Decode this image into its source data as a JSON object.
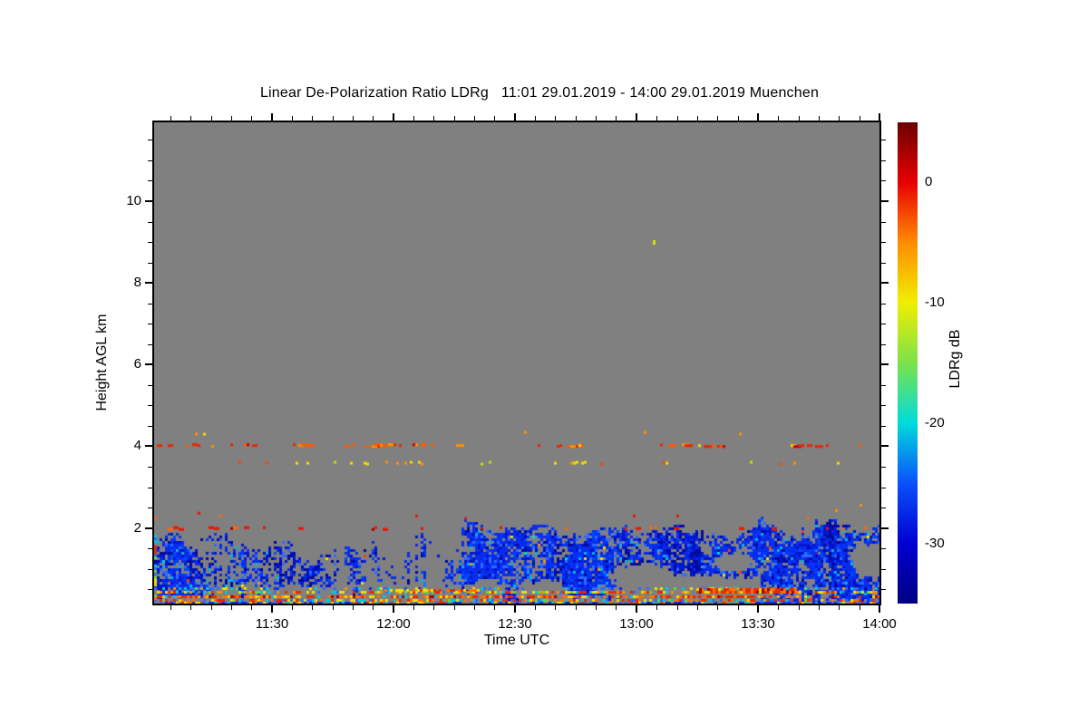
{
  "figure": {
    "title": "Linear De-Polarization Ratio LDRg   11:01 29.01.2019 - 14:00 29.01.2019 Muenchen"
  },
  "chart_data": {
    "type": "heatmap",
    "title": "Linear De-Polarization Ratio LDRg   11:01 29.01.2019 - 14:00 29.01.2019 Muenchen",
    "xlabel": "Time UTC",
    "ylabel": "Height AGL km",
    "colorbar_label": "LDRg dB",
    "station": "Muenchen",
    "date": "29.01.2019",
    "time_start_utc": "11:01",
    "time_end_utc": "14:00",
    "duration_min": 179,
    "x_ticks": [
      {
        "label": "11:30",
        "min": 29
      },
      {
        "label": "12:00",
        "min": 59
      },
      {
        "label": "12:30",
        "min": 89
      },
      {
        "label": "13:00",
        "min": 119
      },
      {
        "label": "13:30",
        "min": 149
      },
      {
        "label": "14:00",
        "min": 179
      }
    ],
    "x_minor_start_min": 4,
    "x_minor_step_min": 5,
    "ylim_km": [
      0.15,
      11.93
    ],
    "y_major_ticks_km": [
      2,
      4,
      6,
      8,
      10
    ],
    "y_minor_step_km": 0.5,
    "grid": false,
    "no_data_color": "#808080",
    "colorbar": {
      "limits_db": [
        5,
        -35
      ],
      "ticks_db": [
        0,
        -10,
        -20,
        -30
      ],
      "minor_step_db": 1,
      "gradient": [
        [
          0,
          "#6B0000"
        ],
        [
          0.125,
          "#E80000"
        ],
        [
          0.25,
          "#FF8C00"
        ],
        [
          0.375,
          "#F0EE00"
        ],
        [
          0.5,
          "#7CE24A"
        ],
        [
          0.625,
          "#00DCDC"
        ],
        [
          0.75,
          "#0A50FA"
        ],
        [
          0.875,
          "#0000D2"
        ],
        [
          1,
          "#000082"
        ]
      ]
    },
    "render": {
      "seed": 20190129,
      "cell": 3,
      "accent_prob": 0.008,
      "cloud_palette": [
        [
          "#0A2BEA",
          42
        ],
        [
          "#0016CE",
          18
        ],
        [
          "#0038FF",
          16
        ],
        [
          "#2E6BFF",
          9
        ],
        [
          "#000A9E",
          6
        ],
        [
          "#0050F0",
          6
        ],
        [
          "#00B6E8",
          3
        ]
      ],
      "cloud_dark": [
        "#0016CE",
        "#000A9E"
      ],
      "accent_palette": [
        [
          "#FF3C00",
          3
        ],
        [
          "#FF9400",
          3
        ],
        [
          "#F0E400",
          2
        ],
        [
          "#00E0D0",
          2
        ]
      ],
      "cyan_boost": {
        "t_max": 20,
        "h_max": 1.15,
        "prob": 0.05,
        "color": "#00C8E0"
      },
      "cloud_segments": [
        {
          "t0": 0,
          "t1": 12,
          "top": 1.6,
          "a1": 0.15,
          "f1": 0.5,
          "a2": 0.1,
          "f2": 0.13,
          "jit": 0.2,
          "bottom": 0.3,
          "bjit": 0.3,
          "density": 0.85,
          "keep": 0.95
        },
        {
          "t0": 12,
          "t1": 52,
          "top": 1.55,
          "a1": 0.22,
          "f1": 0.45,
          "a2": 0.12,
          "f2": 0.11,
          "jit": 0.3,
          "bottom": 0.6,
          "bjit": 0.7,
          "density": 0.62,
          "keep": 0.8
        },
        {
          "t0": 52,
          "t1": 76,
          "top": 1.4,
          "a1": 0.3,
          "f1": 0.5,
          "a2": 0.1,
          "f2": 0.2,
          "jit": 0.35,
          "bottom": 0.65,
          "bjit": 0.6,
          "density": 0.45,
          "keep": 0.6
        },
        {
          "t0": 76,
          "t1": 114,
          "top": 1.95,
          "a1": 0.12,
          "f1": 0.35,
          "a2": 0.08,
          "f2": 0.1,
          "jit": 0.15,
          "bottom": 0.3,
          "bjit": 0.15,
          "density": 0.95,
          "keep": 1
        },
        {
          "t0": 114,
          "t1": 152,
          "top": 2.0,
          "a1": 0.15,
          "f1": 0.3,
          "a2": 0.1,
          "f2": 0.08,
          "jit": 0.2,
          "bottom": 0.3,
          "bjit": 0.2,
          "density": 0.88,
          "keep": 0.97
        },
        {
          "t0": 152,
          "t1": 179,
          "top": 2.1,
          "a1": 0.25,
          "f1": 0.35,
          "a2": 0.1,
          "f2": 0.07,
          "jit": 0.25,
          "bottom": 0.2,
          "bjit": 0.1,
          "density": 0.97,
          "keep": 1
        }
      ],
      "holes": [
        {
          "tc": 133,
          "hc": 0.45,
          "rt": 24,
          "rh": 0.5
        },
        {
          "tc": 120,
          "hc": 0.85,
          "rt": 8,
          "rh": 0.32
        },
        {
          "tc": 143,
          "hc": 1.15,
          "rt": 6,
          "rh": 0.28
        },
        {
          "tc": 96,
          "hc": 0.45,
          "rt": 7,
          "rh": 0.3
        },
        {
          "tc": 36,
          "hc": 0.35,
          "rt": 10,
          "rh": 0.25
        },
        {
          "tc": 82,
          "hc": 0.5,
          "rt": 5,
          "rh": 0.3
        },
        {
          "tc": 177,
          "hc": 1.2,
          "rt": 6,
          "rh": 0.5
        }
      ],
      "speckle_lines": [
        {
          "h": 4.05,
          "jitter": 1,
          "density": 0.32,
          "dash": 1,
          "palette": [
            [
              "#E82800",
              35
            ],
            [
              "#FF5A00",
              25
            ],
            [
              "#FF9000",
              22
            ],
            [
              "#C80000",
              8
            ],
            [
              "#FFD200",
              10
            ]
          ]
        },
        {
          "h": 3.62,
          "jitter": 1,
          "density": 0.11,
          "dash": 0,
          "palette": [
            [
              "#F0E000",
              55
            ],
            [
              "#C8E000",
              20
            ],
            [
              "#FF9000",
              15
            ],
            [
              "#FF4600",
              10
            ]
          ]
        },
        {
          "h": 4.33,
          "jitter": 2,
          "density": 0.035,
          "dash": 0,
          "palette": [
            [
              "#FF9000",
              60
            ],
            [
              "#F0E000",
              40
            ]
          ]
        },
        {
          "h": 2.02,
          "jitter": 1,
          "density": 0.13,
          "dash": 1,
          "palette": [
            [
              "#E81400",
              55
            ],
            [
              "#FF6A00",
              30
            ],
            [
              "#A00000",
              15
            ]
          ]
        },
        {
          "h": 2.33,
          "jitter": 3,
          "density": 0.03,
          "dash": 0,
          "palette": [
            [
              "#FF6A00",
              50
            ],
            [
              "#E81400",
              50
            ]
          ]
        }
      ],
      "ground_bands": [
        {
          "h": 0.56,
          "density": 0.3,
          "palette": [
            [
              "#00C8E0",
              30
            ],
            [
              "#2E6BFF",
              25
            ],
            [
              "#66D83C",
              10
            ],
            [
              "#F0E000",
              15
            ],
            [
              "#FF9000",
              10
            ],
            [
              "#0A2BEA",
              10
            ]
          ]
        },
        {
          "h": 0.46,
          "density": 0.85,
          "palette": [
            [
              "#00C8E0",
              18
            ],
            [
              "#F0E000",
              22
            ],
            [
              "#FF9000",
              18
            ],
            [
              "#E82800",
              16
            ],
            [
              "#66D83C",
              10
            ],
            [
              "#2E6BFF",
              8
            ],
            [
              "#808080",
              8
            ]
          ]
        },
        {
          "h": 0.36,
          "density": 0.92,
          "fade_after_min": 158,
          "fade_mult": 0.5,
          "palette": [
            [
              "#E82800",
              30
            ],
            [
              "#FF7000",
              26
            ],
            [
              "#F0E000",
              16
            ],
            [
              "#A00000",
              8
            ],
            [
              "#00C8E0",
              8
            ],
            [
              "#FFB400",
              8
            ],
            [
              "#808080",
              4
            ]
          ]
        },
        {
          "h": 0.27,
          "density": 0.9,
          "fade_after_min": 158,
          "fade_mult": 0.5,
          "palette": [
            [
              "#FF7000",
              24
            ],
            [
              "#E82800",
              22
            ],
            [
              "#F0E000",
              18
            ],
            [
              "#00C8E0",
              10
            ],
            [
              "#66D83C",
              6
            ],
            [
              "#2E6BFF",
              10
            ],
            [
              "#808080",
              10
            ]
          ]
        },
        {
          "h": 0.19,
          "density": 0.85,
          "palette": [
            [
              "#0A2BEA",
              30
            ],
            [
              "#2E6BFF",
              20
            ],
            [
              "#00C8E0",
              16
            ],
            [
              "#FF7000",
              12
            ],
            [
              "#E82800",
              10
            ],
            [
              "#F0E000",
              12
            ]
          ]
        }
      ],
      "band_segments": [
        {
          "t0": 134,
          "t1": 158,
          "h": 0.52,
          "rows": 2,
          "density": 0.95,
          "palette": [
            [
              "#FF7000",
              40
            ],
            [
              "#E82800",
              35
            ],
            [
              "#F0E000",
              15
            ],
            [
              "#A00000",
              10
            ]
          ]
        },
        {
          "t0": 57,
          "t1": 80,
          "h": 0.5,
          "rows": 1,
          "density": 0.7,
          "palette": [
            [
              "#FF7000",
              45
            ],
            [
              "#E82800",
              30
            ],
            [
              "#F0E000",
              25
            ]
          ]
        }
      ],
      "left_edge_column": {
        "t_max": 1.5,
        "h_min": 0.2,
        "h_max": 1.9,
        "density": 0.55,
        "palette": [
          [
            "#00C8E0",
            25
          ],
          [
            "#66D83C",
            15
          ],
          [
            "#F0E000",
            15
          ],
          [
            "#FF7000",
            10
          ],
          [
            "#2E6BFF",
            20
          ],
          [
            "#E82800",
            15
          ]
        ]
      },
      "dots": [
        {
          "t": 123,
          "km": 9.05,
          "color": "#D4E800",
          "w": 3,
          "hgt": 5
        },
        {
          "t": 168,
          "km": 2.45,
          "color": "#FF9000",
          "w": 3,
          "hgt": 3
        },
        {
          "t": 174,
          "km": 2.6,
          "color": "#FF9000",
          "w": 3,
          "hgt": 3
        }
      ]
    }
  }
}
